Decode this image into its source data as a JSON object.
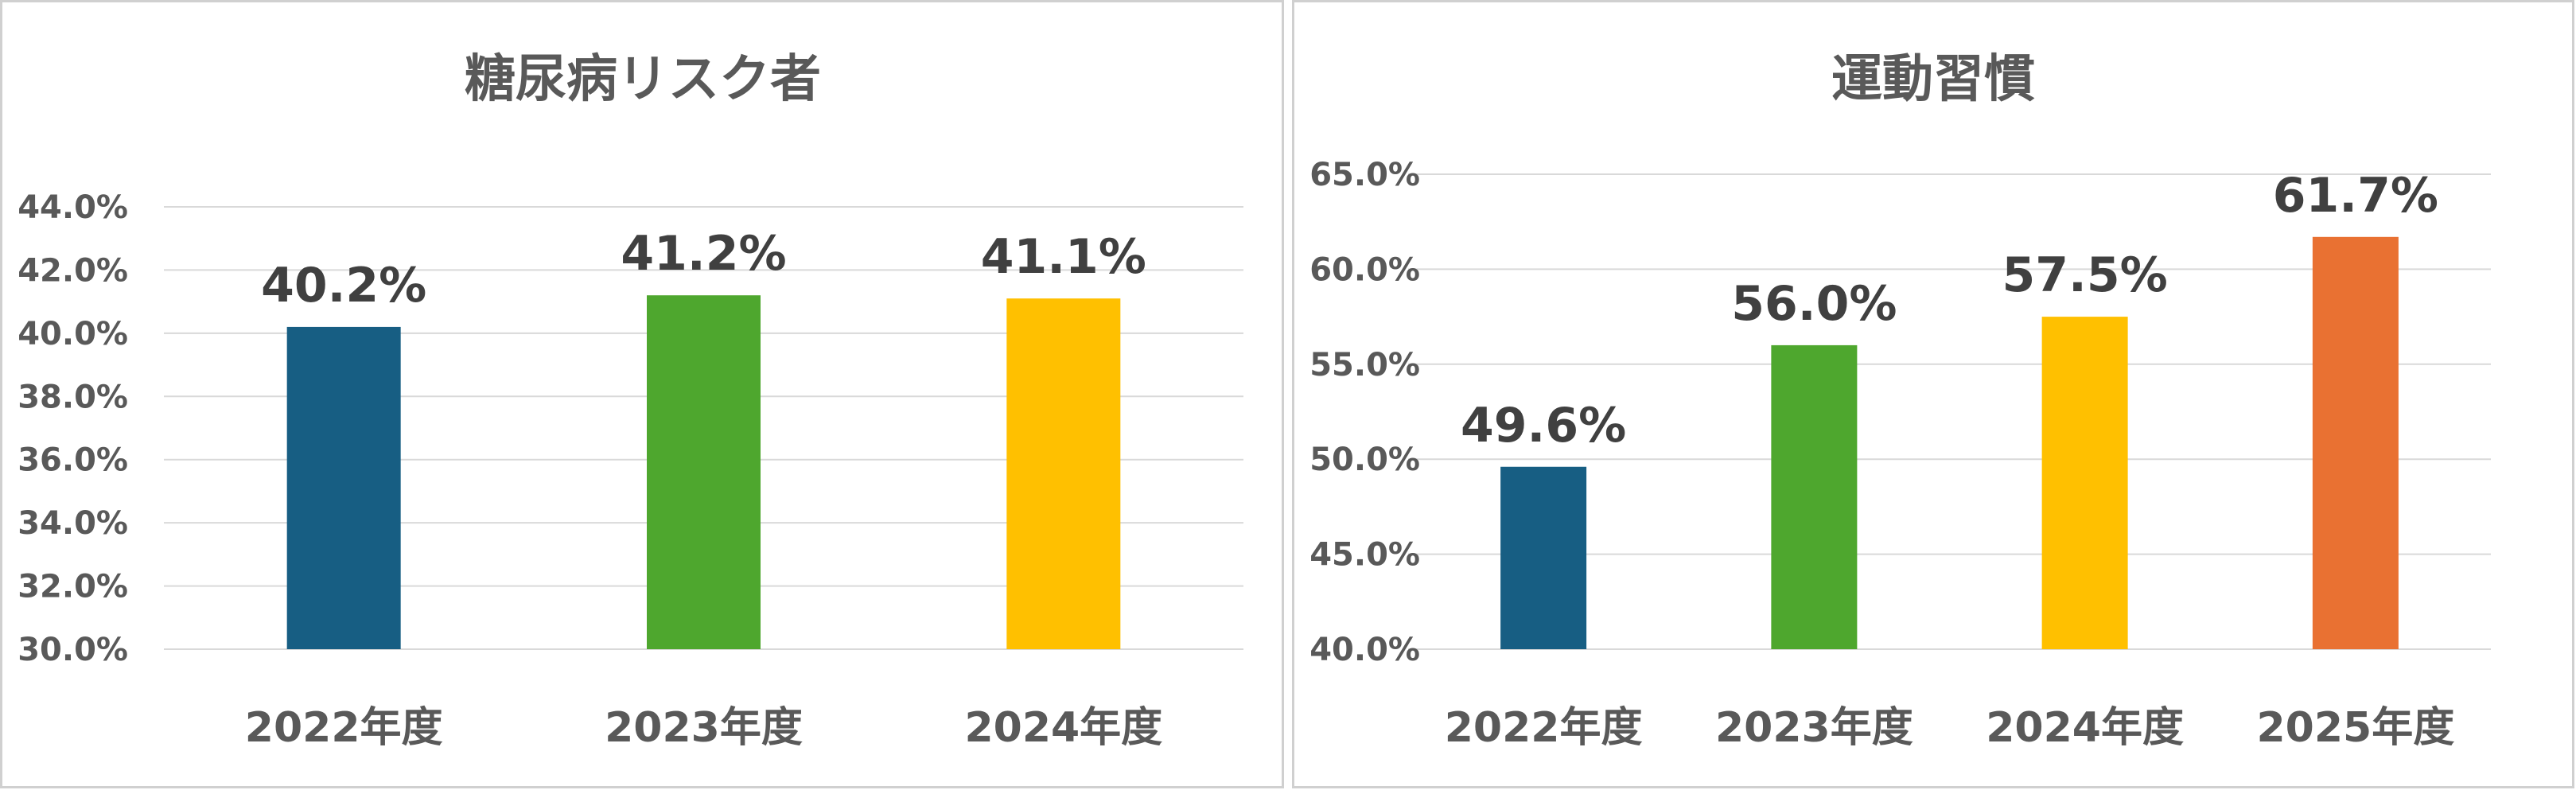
{
  "chart_data": [
    {
      "type": "bar",
      "title": "糖尿病リスク者",
      "categories": [
        "2022年度",
        "2023年度",
        "2024年度"
      ],
      "values": [
        40.2,
        41.2,
        41.1
      ],
      "value_labels": [
        "40.2%",
        "41.2%",
        "41.1%"
      ],
      "colors": [
        "#175e83",
        "#4ea72e",
        "#ffc000"
      ],
      "ylim": [
        30,
        44
      ],
      "yticks": [
        30,
        32,
        34,
        36,
        38,
        40,
        42,
        44
      ],
      "ytick_labels": [
        "30.0%",
        "32.0%",
        "34.0%",
        "36.0%",
        "38.0%",
        "40.0%",
        "42.0%",
        "44.0%"
      ],
      "grid": true,
      "legend": "none"
    },
    {
      "type": "bar",
      "title": "運動習慣",
      "categories": [
        "2022年度",
        "2023年度",
        "2024年度",
        "2025年度"
      ],
      "values": [
        49.6,
        56.0,
        57.5,
        61.7
      ],
      "value_labels": [
        "49.6%",
        "56.0%",
        "57.5%",
        "61.7%"
      ],
      "colors": [
        "#175e83",
        "#4ea72e",
        "#ffc000",
        "#e97132"
      ],
      "ylim": [
        40,
        65
      ],
      "yticks": [
        40,
        45,
        50,
        55,
        60,
        65
      ],
      "ytick_labels": [
        "40.0%",
        "45.0%",
        "50.0%",
        "55.0%",
        "60.0%",
        "65.0%"
      ],
      "grid": true,
      "legend": "none"
    }
  ]
}
